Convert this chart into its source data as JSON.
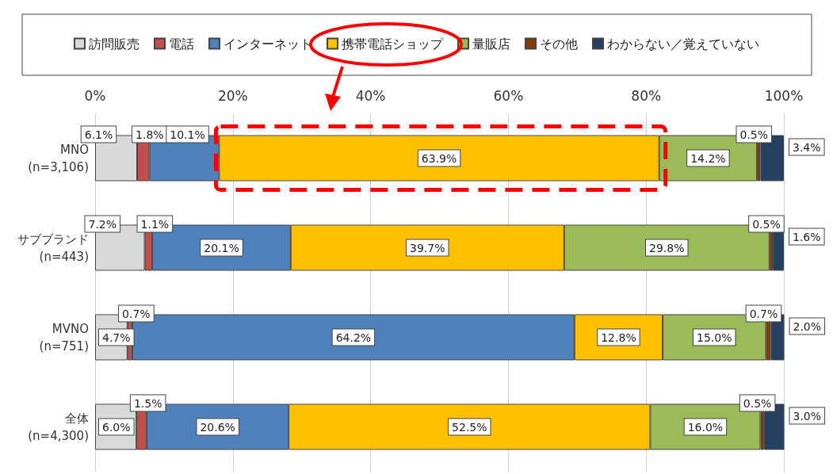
{
  "chart_data": {
    "type": "bar",
    "orientation": "horizontal",
    "stacked": true,
    "categories": [
      "MNO\n(n=3,106)",
      "サブブランド\n(n=443)",
      "MVNO\n(n=751)",
      "全体\n(n=4,300)"
    ],
    "series": [
      {
        "name": "訪問販売",
        "color": "#d9d9d9",
        "values": [
          6.1,
          7.2,
          4.7,
          6.0
        ],
        "value_labels": [
          "6.1%",
          "7.2%",
          "4.7%",
          "6.0%"
        ]
      },
      {
        "name": "電話",
        "color": "#c0504d",
        "values": [
          1.8,
          1.1,
          0.7,
          1.5
        ],
        "value_labels": [
          "1.8%",
          "1.1%",
          "0.7%",
          "1.5%"
        ]
      },
      {
        "name": "インターネット",
        "color": "#4f81bd",
        "values": [
          10.1,
          20.1,
          64.2,
          20.6
        ],
        "value_labels": [
          "10.1%",
          "20.1%",
          "64.2%",
          "20.6%"
        ]
      },
      {
        "name": "携帯電話ショップ",
        "color": "#ffc000",
        "values": [
          63.9,
          39.7,
          12.8,
          52.5
        ],
        "value_labels": [
          "63.9%",
          "39.7%",
          "12.8%",
          "52.5%"
        ]
      },
      {
        "name": "量販店",
        "color": "#9bbb59",
        "values": [
          14.2,
          29.8,
          15.0,
          16.0
        ],
        "value_labels": [
          "14.2%",
          "29.8%",
          "15.0%",
          "16.0%"
        ]
      },
      {
        "name": "その他",
        "color": "#843c0c",
        "values": [
          0.5,
          0.5,
          0.7,
          0.5
        ],
        "value_labels": [
          "0.5%",
          "0.5%",
          "0.7%",
          "0.5%"
        ]
      },
      {
        "name": "わからない／覚えていない",
        "color": "#254061",
        "values": [
          3.4,
          1.6,
          2.0,
          3.0
        ],
        "value_labels": [
          "3.4%",
          "1.6%",
          "2.0%",
          "3.0%"
        ]
      }
    ],
    "xlim": [
      0,
      100
    ],
    "xticks": [
      {
        "value": 0,
        "label": "0%"
      },
      {
        "value": 20,
        "label": "20%"
      },
      {
        "value": 40,
        "label": "40%"
      },
      {
        "value": 60,
        "label": "60%"
      },
      {
        "value": 80,
        "label": "80%"
      },
      {
        "value": 100,
        "label": "100%"
      }
    ],
    "grid": "x",
    "legend": "top"
  }
}
